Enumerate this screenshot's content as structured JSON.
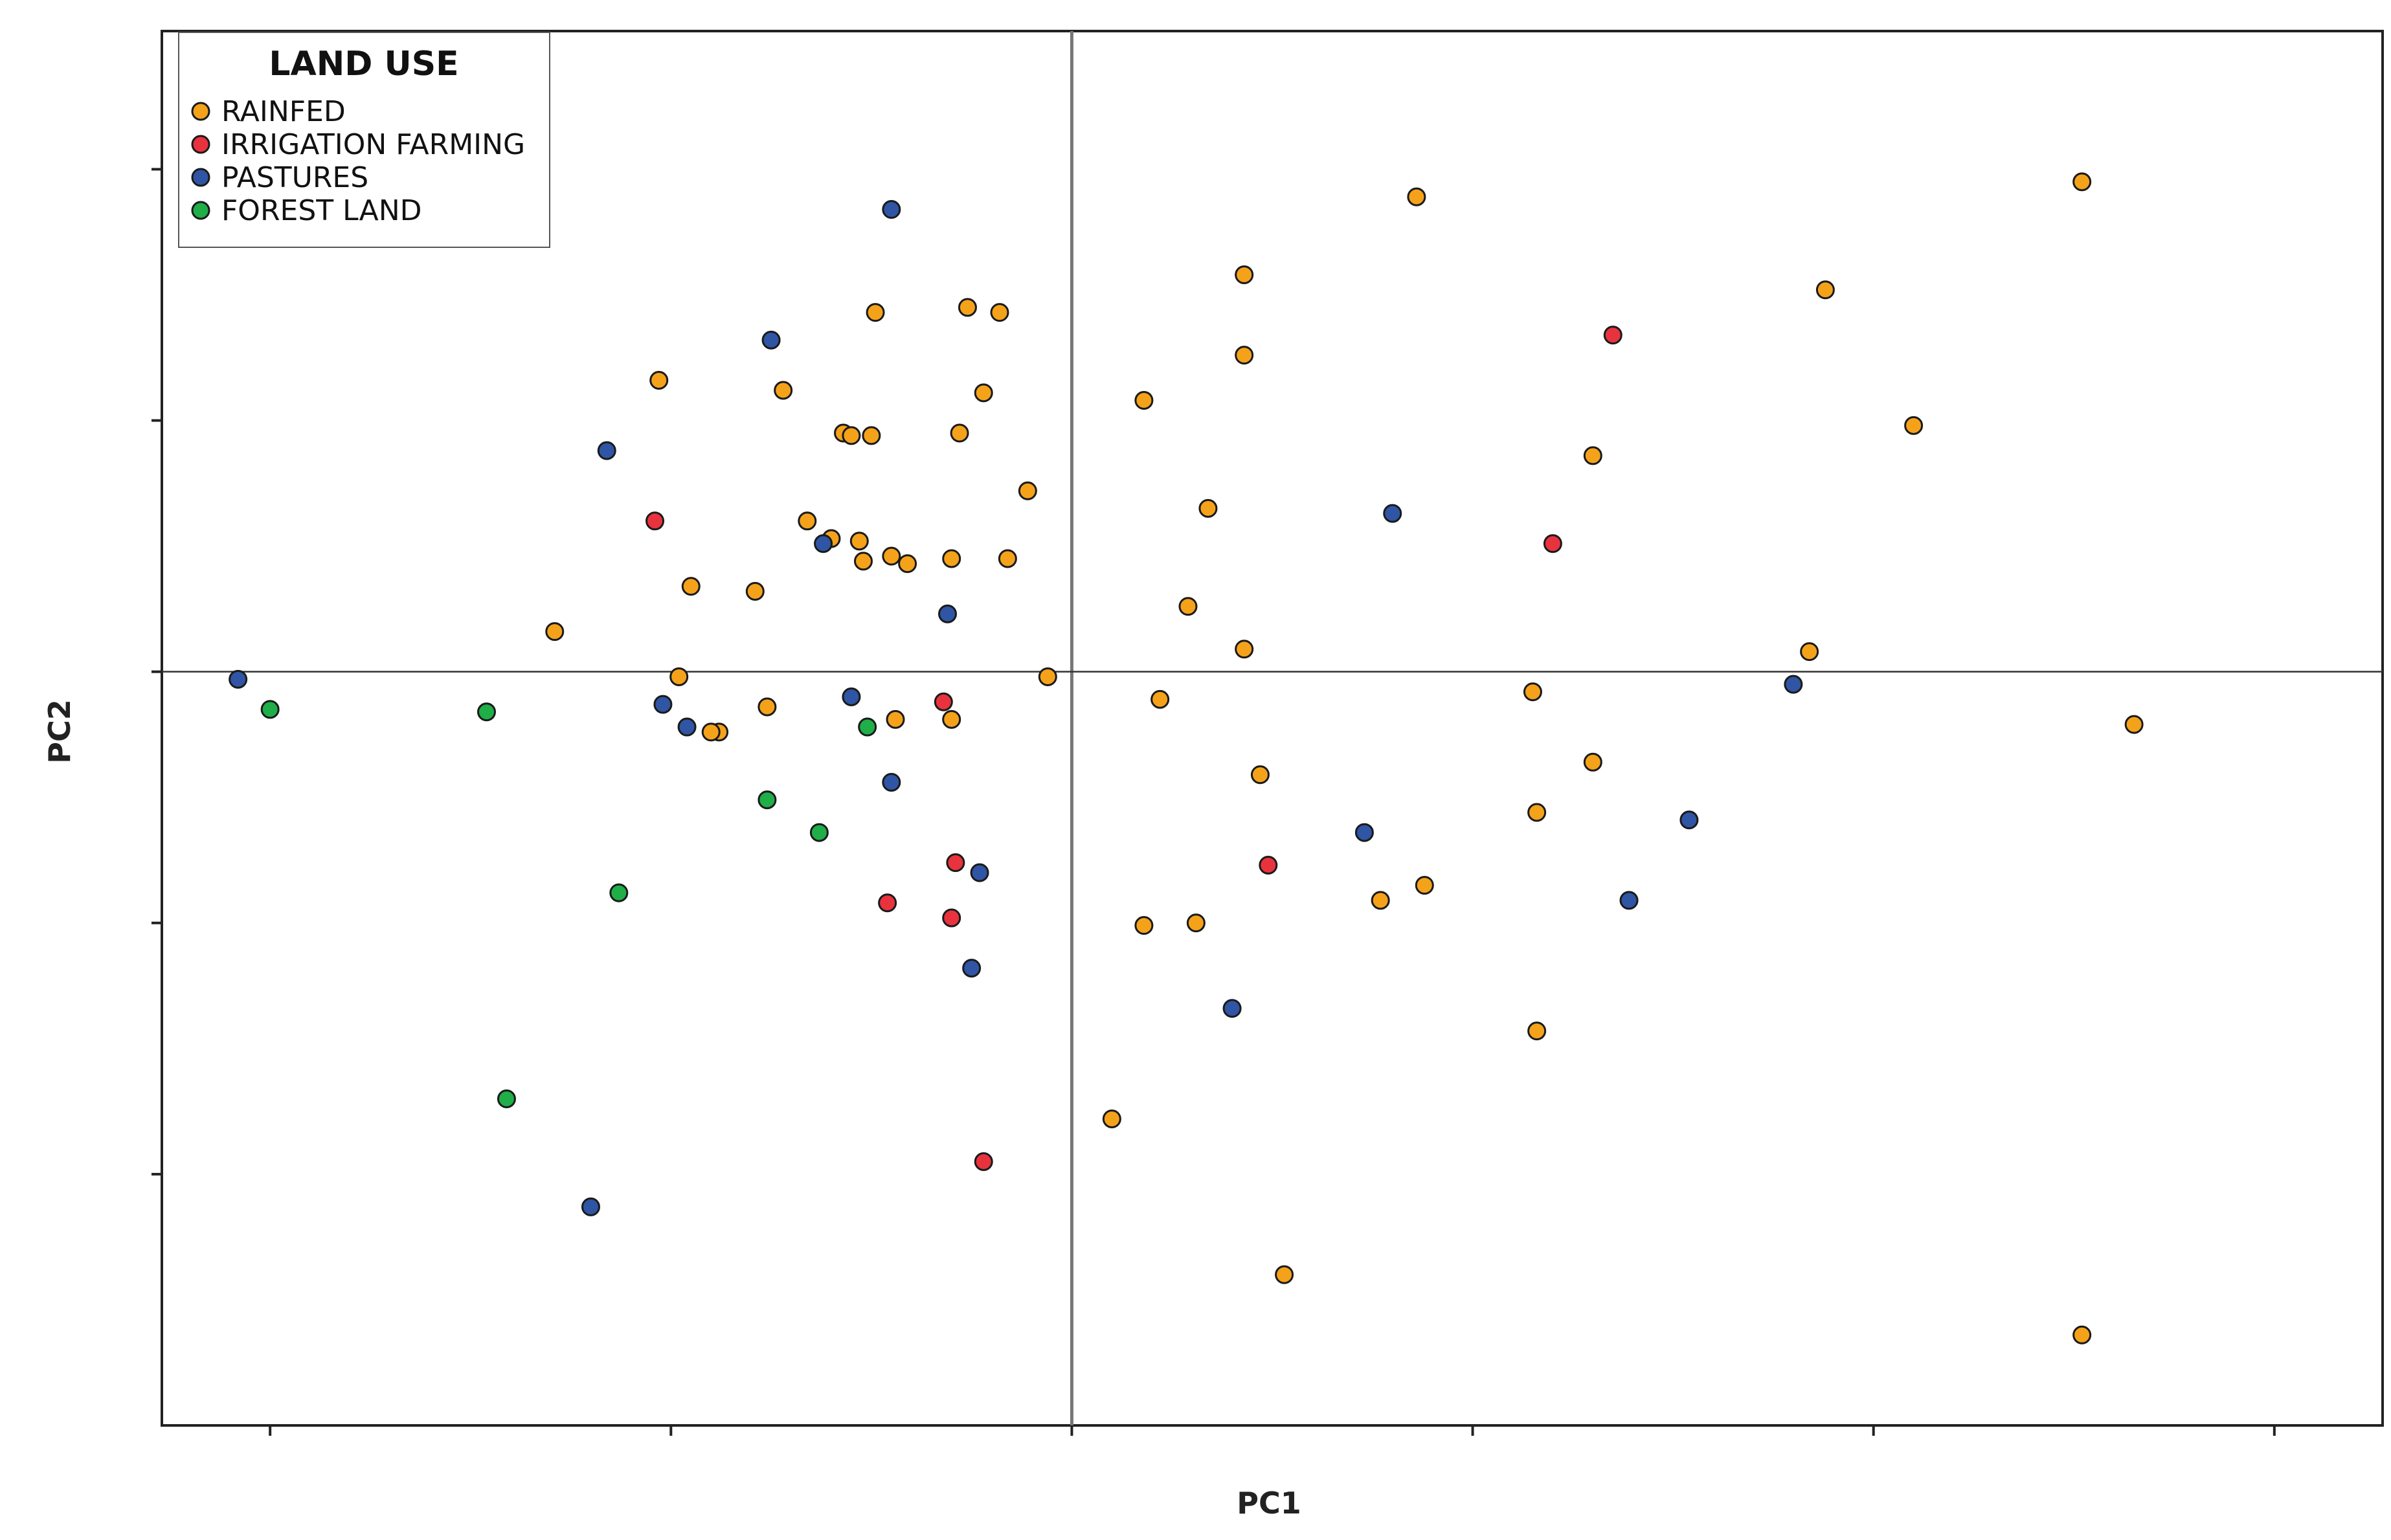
{
  "chart_data": {
    "type": "scatter",
    "xlabel": "PC1",
    "ylabel": "PC2",
    "xlim": [
      -2.27,
      3.27
    ],
    "ylim": [
      -3.0,
      2.55
    ],
    "x_ticks": [
      -2,
      -1,
      0,
      1,
      2,
      3
    ],
    "y_ticks": [
      -2,
      -1,
      0,
      1,
      2
    ],
    "grid": false,
    "reference_lines": {
      "x": 0,
      "y": 0
    },
    "legend": {
      "title": "LAND USE",
      "position": "top-left"
    },
    "series": [
      {
        "name": "RAINFED",
        "color": "#f5a21b",
        "x": [
          -1.03,
          -0.72,
          -0.49,
          -0.57,
          -0.26,
          -0.18,
          -0.66,
          -0.5,
          -0.55,
          -0.6,
          -0.45,
          -0.28,
          -0.22,
          -1.29,
          -0.95,
          -0.79,
          -0.52,
          -0.41,
          -0.98,
          -0.88,
          -0.76,
          -0.44,
          -0.3,
          -0.11,
          -0.3,
          -0.16,
          -0.06,
          0.18,
          0.43,
          0.43,
          0.86,
          1.88,
          1.3,
          2.1,
          2.52,
          0.34,
          0.29,
          0.43,
          1.15,
          1.84,
          0.22,
          0.47,
          1.3,
          0.88,
          1.16,
          0.77,
          0.18,
          0.31,
          0.1,
          1.16,
          0.53,
          2.52,
          2.65,
          -0.53,
          -0.9
        ],
        "y": [
          1.16,
          1.12,
          1.43,
          0.95,
          1.45,
          1.43,
          0.6,
          0.94,
          0.94,
          0.53,
          0.46,
          0.95,
          1.11,
          0.16,
          0.34,
          0.32,
          0.44,
          0.43,
          -0.02,
          -0.24,
          -0.14,
          -0.19,
          -0.19,
          0.72,
          0.45,
          0.45,
          -0.02,
          1.08,
          1.58,
          1.26,
          1.89,
          1.52,
          0.86,
          0.98,
          1.95,
          0.65,
          0.26,
          0.09,
          -0.08,
          0.08,
          -0.11,
          -0.41,
          -0.36,
          -0.85,
          -0.56,
          -0.91,
          -1.01,
          -1.0,
          -1.78,
          -1.43,
          -2.4,
          -2.64,
          -0.21,
          0.52,
          -0.24
        ]
      },
      {
        "name": "IRRIGATION FARMING",
        "color": "#e8333f",
        "x": [
          -1.04,
          -0.32,
          -0.29,
          -0.46,
          -0.3,
          -0.22,
          1.35,
          1.2,
          0.49
        ],
        "y": [
          0.6,
          -0.12,
          -0.76,
          -0.92,
          -0.98,
          -1.95,
          1.34,
          0.51,
          -0.77
        ]
      },
      {
        "name": "PASTURES",
        "color": "#2f55a4",
        "x": [
          -0.45,
          -0.75,
          -1.16,
          -0.62,
          -2.08,
          -1.02,
          -0.96,
          -0.55,
          -0.31,
          -0.45,
          -0.23,
          -0.25,
          -1.2,
          0.8,
          0.73,
          0.4,
          1.8,
          1.54,
          1.39
        ],
        "y": [
          1.84,
          1.32,
          0.88,
          0.51,
          -0.03,
          -0.13,
          -0.22,
          -0.1,
          0.23,
          -0.44,
          -0.8,
          -1.18,
          -2.13,
          0.63,
          -0.64,
          -1.34,
          -0.05,
          -0.59,
          -0.91
        ]
      },
      {
        "name": "FOREST LAND",
        "color": "#1fae47",
        "x": [
          -2.0,
          -1.46,
          -0.51,
          -0.76,
          -0.63,
          -1.13,
          -1.41
        ],
        "y": [
          -0.15,
          -0.16,
          -0.22,
          -0.51,
          -0.64,
          -0.88,
          -1.7
        ]
      }
    ]
  }
}
